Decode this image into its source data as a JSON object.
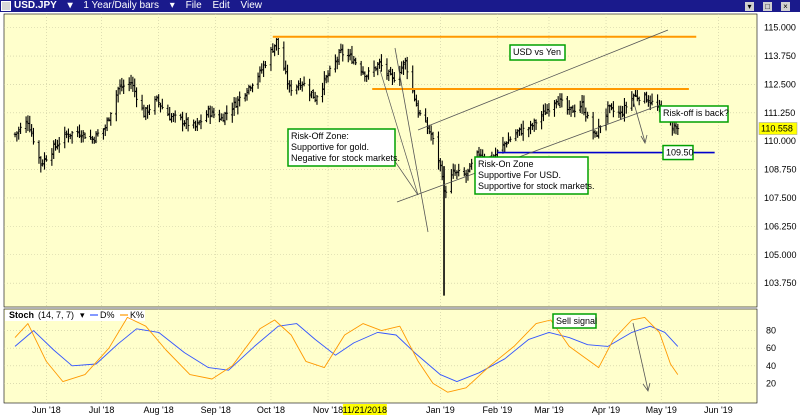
{
  "window": {
    "symbol": "USD.JPY",
    "period": "1 Year/Daily bars",
    "menu": [
      "File",
      "Edit",
      "View"
    ]
  },
  "colors": {
    "background": "#ffffcc",
    "grid": "#c8c8a0",
    "bars": "#000000",
    "resistance": "#ff9900",
    "support": "#0000cc",
    "channel": "#555555",
    "annotation_border": "#00a000",
    "price_tag": "#ffff00",
    "stoch_d": "#3355ff",
    "stoch_k": "#ff9900"
  },
  "chart_data": [
    {
      "type": "ohlc",
      "x_ticks": [
        "Jun '18",
        "Jul '18",
        "Aug '18",
        "Sep '18",
        "Oct '18",
        "Nov '18",
        "11/21/2018",
        "Jan '19",
        "Feb '19",
        "Mar '19",
        "Apr '19",
        "May '19",
        "Jun '19"
      ],
      "x_highlight": "11/21/2018",
      "y_ticks": [
        115.0,
        113.75,
        112.5,
        111.25,
        110.0,
        108.75,
        107.5,
        106.25,
        105.0,
        103.75
      ],
      "ylim": [
        102.7,
        115.6
      ],
      "last_price": "110.558",
      "close_path": [
        [
          "2018-05-15",
          110.3
        ],
        [
          "2018-05-22",
          110.9
        ],
        [
          "2018-05-29",
          109.0
        ],
        [
          "2018-06-05",
          109.7
        ],
        [
          "2018-06-12",
          110.3
        ],
        [
          "2018-06-19",
          110.4
        ],
        [
          "2018-06-26",
          110.1
        ],
        [
          "2018-07-03",
          110.6
        ],
        [
          "2018-07-10",
          112.3
        ],
        [
          "2018-07-17",
          112.6
        ],
        [
          "2018-07-24",
          111.2
        ],
        [
          "2018-07-31",
          111.8
        ],
        [
          "2018-08-07",
          111.1
        ],
        [
          "2018-08-14",
          110.9
        ],
        [
          "2018-08-21",
          110.6
        ],
        [
          "2018-08-28",
          111.3
        ],
        [
          "2018-09-04",
          111.0
        ],
        [
          "2018-09-11",
          111.6
        ],
        [
          "2018-09-18",
          112.3
        ],
        [
          "2018-09-25",
          113.0
        ],
        [
          "2018-10-02",
          114.1
        ],
        [
          "2018-10-04",
          114.4
        ],
        [
          "2018-10-11",
          112.3
        ],
        [
          "2018-10-18",
          112.6
        ],
        [
          "2018-10-25",
          111.9
        ],
        [
          "2018-11-01",
          112.9
        ],
        [
          "2018-11-08",
          113.9
        ],
        [
          "2018-11-15",
          113.6
        ],
        [
          "2018-11-22",
          112.9
        ],
        [
          "2018-11-29",
          113.4
        ],
        [
          "2018-12-06",
          112.7
        ],
        [
          "2018-12-13",
          113.5
        ],
        [
          "2018-12-20",
          111.3
        ],
        [
          "2018-12-27",
          110.3
        ],
        [
          "2019-01-02",
          108.6
        ],
        [
          "2019-01-03",
          107.7
        ],
        [
          "2019-01-08",
          108.6
        ],
        [
          "2019-01-15",
          108.5
        ],
        [
          "2019-01-22",
          109.5
        ],
        [
          "2019-01-29",
          109.2
        ],
        [
          "2019-02-05",
          109.9
        ],
        [
          "2019-02-12",
          110.4
        ],
        [
          "2019-02-19",
          110.6
        ],
        [
          "2019-02-26",
          111.2
        ],
        [
          "2019-03-05",
          111.9
        ],
        [
          "2019-03-12",
          111.3
        ],
        [
          "2019-03-19",
          111.6
        ],
        [
          "2019-03-26",
          110.2
        ],
        [
          "2019-04-02",
          111.4
        ],
        [
          "2019-04-09",
          111.2
        ],
        [
          "2019-04-16",
          112.0
        ],
        [
          "2019-04-23",
          111.9
        ],
        [
          "2019-04-30",
          111.4
        ],
        [
          "2019-05-07",
          110.7
        ],
        [
          "2019-05-10",
          110.56
        ]
      ],
      "flash_crash": {
        "date": "2019-01-03",
        "high": 108.9,
        "low": 103.2
      },
      "levels": [
        {
          "kind": "resistance",
          "value": 114.6,
          "from": "2018-10-02",
          "to": "2019-05-20"
        },
        {
          "kind": "resistance",
          "value": 112.3,
          "from": "2018-11-25",
          "to": "2019-05-16"
        },
        {
          "kind": "support",
          "value": 109.5,
          "from": "2019-02-01",
          "to": "2019-05-30",
          "label": "109.50"
        }
      ],
      "annotations": [
        {
          "id": "usd-vs-yen",
          "lines": [
            "USD vs Yen"
          ]
        },
        {
          "id": "risk-off-zone",
          "lines": [
            "Risk-Off Zone:",
            "Supportive for gold.",
            "Negative for stock markets."
          ]
        },
        {
          "id": "risk-on-zone",
          "lines": [
            "Risk-On Zone",
            "Supportive For USD.",
            "Supportive for stock markets."
          ]
        },
        {
          "id": "risk-off-back",
          "lines": [
            "Risk-off is back?"
          ]
        }
      ]
    },
    {
      "type": "line",
      "title": "Stoch",
      "params": "(14, 7, 7)",
      "legend": [
        {
          "name": "D%",
          "color": "#3355ff"
        },
        {
          "name": "K%",
          "color": "#ff9900"
        }
      ],
      "y_ticks": [
        80,
        60,
        40,
        20
      ],
      "ylim": [
        0,
        100
      ],
      "series": [
        {
          "name": "D%",
          "points": [
            [
              "2018-05-15",
              62
            ],
            [
              "2018-05-25",
              80
            ],
            [
              "2018-06-05",
              58
            ],
            [
              "2018-06-15",
              40
            ],
            [
              "2018-06-28",
              42
            ],
            [
              "2018-07-10",
              65
            ],
            [
              "2018-07-20",
              82
            ],
            [
              "2018-08-01",
              78
            ],
            [
              "2018-08-15",
              55
            ],
            [
              "2018-08-28",
              38
            ],
            [
              "2018-09-08",
              35
            ],
            [
              "2018-09-22",
              62
            ],
            [
              "2018-10-05",
              85
            ],
            [
              "2018-10-15",
              88
            ],
            [
              "2018-10-25",
              70
            ],
            [
              "2018-11-05",
              52
            ],
            [
              "2018-11-15",
              66
            ],
            [
              "2018-11-28",
              78
            ],
            [
              "2018-12-08",
              75
            ],
            [
              "2018-12-18",
              55
            ],
            [
              "2019-01-01",
              30
            ],
            [
              "2019-01-10",
              22
            ],
            [
              "2019-01-22",
              32
            ],
            [
              "2019-02-05",
              48
            ],
            [
              "2019-02-18",
              70
            ],
            [
              "2019-03-01",
              78
            ],
            [
              "2019-03-12",
              72
            ],
            [
              "2019-03-22",
              64
            ],
            [
              "2019-04-02",
              62
            ],
            [
              "2019-04-15",
              78
            ],
            [
              "2019-04-25",
              85
            ],
            [
              "2019-05-03",
              78
            ],
            [
              "2019-05-10",
              62
            ]
          ]
        },
        {
          "name": "K%",
          "points": [
            [
              "2018-05-15",
              72
            ],
            [
              "2018-05-22",
              88
            ],
            [
              "2018-06-01",
              45
            ],
            [
              "2018-06-10",
              22
            ],
            [
              "2018-06-22",
              30
            ],
            [
              "2018-07-05",
              60
            ],
            [
              "2018-07-15",
              95
            ],
            [
              "2018-07-25",
              85
            ],
            [
              "2018-08-05",
              58
            ],
            [
              "2018-08-18",
              30
            ],
            [
              "2018-08-30",
              25
            ],
            [
              "2018-09-10",
              40
            ],
            [
              "2018-09-25",
              82
            ],
            [
              "2018-10-03",
              92
            ],
            [
              "2018-10-12",
              75
            ],
            [
              "2018-10-20",
              45
            ],
            [
              "2018-10-30",
              38
            ],
            [
              "2018-11-10",
              75
            ],
            [
              "2018-11-20",
              88
            ],
            [
              "2018-11-30",
              80
            ],
            [
              "2018-12-10",
              85
            ],
            [
              "2018-12-20",
              45
            ],
            [
              "2018-12-28",
              20
            ],
            [
              "2019-01-05",
              10
            ],
            [
              "2019-01-15",
              15
            ],
            [
              "2019-01-28",
              40
            ],
            [
              "2019-02-10",
              62
            ],
            [
              "2019-02-22",
              88
            ],
            [
              "2019-03-02",
              92
            ],
            [
              "2019-03-12",
              62
            ],
            [
              "2019-03-20",
              50
            ],
            [
              "2019-03-28",
              38
            ],
            [
              "2019-04-05",
              70
            ],
            [
              "2019-04-15",
              92
            ],
            [
              "2019-04-22",
              95
            ],
            [
              "2019-04-30",
              78
            ],
            [
              "2019-05-06",
              42
            ],
            [
              "2019-05-10",
              30
            ]
          ]
        }
      ],
      "annotations": [
        {
          "id": "sell-signal",
          "lines": [
            "Sell signal"
          ]
        }
      ]
    }
  ]
}
